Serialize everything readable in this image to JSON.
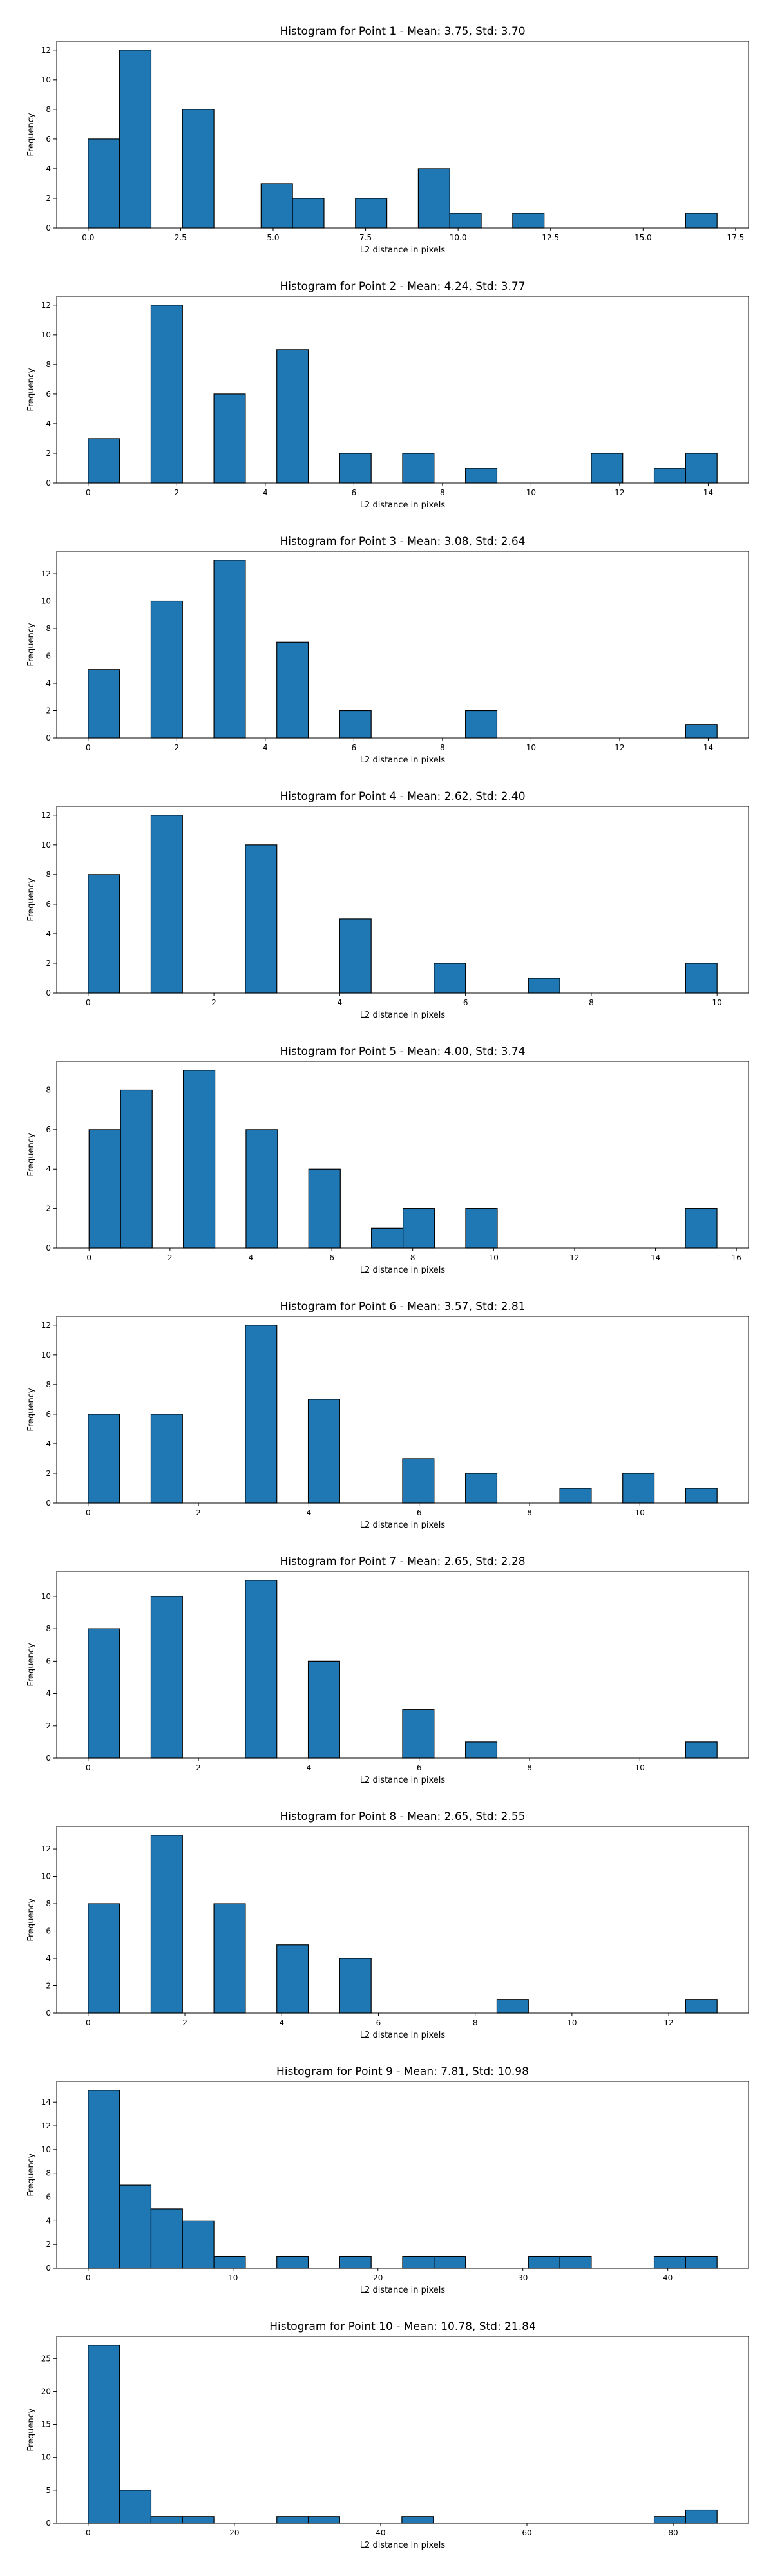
{
  "colors": {
    "bar_fill": "#1f77b4",
    "bar_edge": "#000000",
    "background": "#ffffff"
  },
  "chart_data": [
    {
      "type": "bar",
      "title": "Histogram for Point 1 - Mean: 3.75, Std: 3.70",
      "xlabel": "L2 distance in pixels",
      "ylabel": "Frequency",
      "xlim": [
        -0.85,
        17.85
      ],
      "ylim": [
        0,
        12.6
      ],
      "xticks": [
        0.0,
        2.5,
        5.0,
        7.5,
        10.0,
        12.5,
        15.0,
        17.5
      ],
      "xtick_labels": [
        "0.0",
        "2.5",
        "5.0",
        "7.5",
        "10.0",
        "12.5",
        "15.0",
        "17.5"
      ],
      "yticks": [
        0,
        2,
        4,
        6,
        8,
        10,
        12
      ],
      "bin_width": 0.85,
      "bin_starts": [
        0.0,
        0.85,
        2.55,
        4.675,
        5.525,
        7.225,
        8.925,
        9.775,
        11.475,
        16.15
      ],
      "values": [
        6,
        12,
        8,
        3,
        2,
        2,
        4,
        1,
        1,
        1
      ]
    },
    {
      "type": "bar",
      "title": "Histogram for Point 2 - Mean: 4.24, Std: 3.77",
      "xlabel": "L2 distance in pixels",
      "ylabel": "Frequency",
      "xlim": [
        -0.71,
        14.91
      ],
      "ylim": [
        0,
        12.6
      ],
      "xticks": [
        0,
        2,
        4,
        6,
        8,
        10,
        12,
        14
      ],
      "xtick_labels": [
        "0",
        "2",
        "4",
        "6",
        "8",
        "10",
        "12",
        "14"
      ],
      "yticks": [
        0,
        2,
        4,
        6,
        8,
        10,
        12
      ],
      "bin_width": 0.71,
      "bin_starts": [
        0.0,
        1.42,
        2.84,
        4.26,
        5.68,
        7.1,
        8.52,
        11.36,
        12.78,
        13.49
      ],
      "values": [
        3,
        12,
        6,
        9,
        2,
        2,
        1,
        2,
        1,
        2
      ]
    },
    {
      "type": "bar",
      "title": "Histogram for Point 3 - Mean: 3.08, Std: 2.64",
      "xlabel": "L2 distance in pixels",
      "ylabel": "Frequency",
      "xlim": [
        -0.71,
        14.91
      ],
      "ylim": [
        0,
        13.65
      ],
      "xticks": [
        0,
        2,
        4,
        6,
        8,
        10,
        12,
        14
      ],
      "xtick_labels": [
        "0",
        "2",
        "4",
        "6",
        "8",
        "10",
        "12",
        "14"
      ],
      "yticks": [
        0,
        2,
        4,
        6,
        8,
        10,
        12
      ],
      "bin_width": 0.71,
      "bin_starts": [
        0.0,
        1.42,
        2.84,
        4.26,
        5.68,
        8.52,
        13.49
      ],
      "values": [
        5,
        10,
        13,
        7,
        2,
        2,
        1
      ]
    },
    {
      "type": "bar",
      "title": "Histogram for Point 4 - Mean: 2.62, Std: 2.40",
      "xlabel": "L2 distance in pixels",
      "ylabel": "Frequency",
      "xlim": [
        -0.5,
        10.5
      ],
      "ylim": [
        0,
        12.6
      ],
      "xticks": [
        0,
        2,
        4,
        6,
        8,
        10
      ],
      "xtick_labels": [
        "0",
        "2",
        "4",
        "6",
        "8",
        "10"
      ],
      "yticks": [
        0,
        2,
        4,
        6,
        8,
        10,
        12
      ],
      "bin_width": 0.5,
      "bin_starts": [
        0.0,
        1.0,
        2.5,
        4.0,
        5.5,
        7.0,
        9.5
      ],
      "values": [
        8,
        12,
        10,
        5,
        2,
        1,
        2
      ]
    },
    {
      "type": "bar",
      "title": "Histogram for Point 5 - Mean: 4.00, Std: 3.74",
      "xlabel": "L2 distance in pixels",
      "ylabel": "Frequency",
      "xlim": [
        -0.8,
        16.3
      ],
      "ylim": [
        0,
        9.45
      ],
      "xticks": [
        0,
        2,
        4,
        6,
        8,
        10,
        12,
        14,
        16
      ],
      "xtick_labels": [
        "0",
        "2",
        "4",
        "6",
        "8",
        "10",
        "12",
        "14",
        "16"
      ],
      "yticks": [
        0,
        2,
        4,
        6,
        8
      ],
      "bin_width": 0.78,
      "bin_starts": [
        0.0,
        0.78,
        2.33,
        3.88,
        5.43,
        6.98,
        7.76,
        9.31,
        14.74
      ],
      "values": [
        6,
        8,
        9,
        6,
        4,
        1,
        2,
        2,
        2
      ]
    },
    {
      "type": "bar",
      "title": "Histogram for Point 6 - Mean: 3.57, Std: 2.81",
      "xlabel": "L2 distance in pixels",
      "ylabel": "Frequency",
      "xlim": [
        -0.57,
        11.97
      ],
      "ylim": [
        0,
        12.6
      ],
      "xticks": [
        0,
        2,
        4,
        6,
        8,
        10
      ],
      "xtick_labels": [
        "0",
        "2",
        "4",
        "6",
        "8",
        "10"
      ],
      "yticks": [
        0,
        2,
        4,
        6,
        8,
        10,
        12
      ],
      "bin_width": 0.57,
      "bin_starts": [
        0.0,
        1.14,
        2.85,
        3.99,
        5.7,
        6.84,
        8.55,
        9.69,
        10.83
      ],
      "values": [
        6,
        6,
        12,
        7,
        3,
        2,
        1,
        2,
        1
      ]
    },
    {
      "type": "bar",
      "title": "Histogram for Point 7 - Mean: 2.65, Std: 2.28",
      "xlabel": "L2 distance in pixels",
      "ylabel": "Frequency",
      "xlim": [
        -0.57,
        11.97
      ],
      "ylim": [
        0,
        11.55
      ],
      "xticks": [
        0,
        2,
        4,
        6,
        8,
        10
      ],
      "xtick_labels": [
        "0",
        "2",
        "4",
        "6",
        "8",
        "10"
      ],
      "yticks": [
        0,
        2,
        4,
        6,
        8,
        10
      ],
      "bin_width": 0.57,
      "bin_starts": [
        0.0,
        1.14,
        2.85,
        3.99,
        5.7,
        6.84,
        10.83
      ],
      "values": [
        8,
        10,
        11,
        6,
        3,
        1,
        1
      ]
    },
    {
      "type": "bar",
      "title": "Histogram for Point 8 - Mean: 2.65, Std: 2.55",
      "xlabel": "L2 distance in pixels",
      "ylabel": "Frequency",
      "xlim": [
        -0.65,
        13.65
      ],
      "ylim": [
        0,
        13.65
      ],
      "xticks": [
        0,
        2,
        4,
        6,
        8,
        10,
        12
      ],
      "xtick_labels": [
        "0",
        "2",
        "4",
        "6",
        "8",
        "10",
        "12"
      ],
      "yticks": [
        0,
        2,
        4,
        6,
        8,
        10,
        12
      ],
      "bin_width": 0.65,
      "bin_starts": [
        0.0,
        1.3,
        2.6,
        3.9,
        5.2,
        8.45,
        12.35
      ],
      "values": [
        8,
        13,
        8,
        5,
        4,
        1,
        1
      ]
    },
    {
      "type": "bar",
      "title": "Histogram for Point 9 - Mean: 7.81, Std: 10.98",
      "xlabel": "L2 distance in pixels",
      "ylabel": "Frequency",
      "xlim": [
        -2.17,
        45.57
      ],
      "ylim": [
        0,
        15.75
      ],
      "xticks": [
        0,
        10,
        20,
        30,
        40
      ],
      "xtick_labels": [
        "0",
        "10",
        "20",
        "30",
        "40"
      ],
      "yticks": [
        0,
        2,
        4,
        6,
        8,
        10,
        12,
        14
      ],
      "bin_width": 2.17,
      "bin_starts": [
        0.0,
        2.17,
        4.34,
        6.51,
        8.68,
        13.02,
        17.36,
        21.7,
        23.87,
        30.38,
        32.55,
        39.06,
        41.23
      ],
      "values": [
        15,
        7,
        5,
        4,
        1,
        1,
        1,
        1,
        1,
        1,
        1,
        1,
        1
      ]
    },
    {
      "type": "bar",
      "title": "Histogram for Point 10 - Mean: 10.78, Std: 21.84",
      "xlabel": "L2 distance in pixels",
      "ylabel": "Frequency",
      "xlim": [
        -4.3,
        90.3
      ],
      "ylim": [
        0,
        28.35
      ],
      "xticks": [
        0,
        20,
        40,
        60,
        80
      ],
      "xtick_labels": [
        "0",
        "20",
        "40",
        "60",
        "80"
      ],
      "yticks": [
        0,
        5,
        10,
        15,
        20,
        25
      ],
      "bin_width": 4.3,
      "bin_starts": [
        0.0,
        4.3,
        8.6,
        12.9,
        25.8,
        30.1,
        42.9,
        77.4,
        81.7
      ],
      "values": [
        27,
        5,
        1,
        1,
        1,
        1,
        1,
        1,
        2
      ]
    }
  ]
}
